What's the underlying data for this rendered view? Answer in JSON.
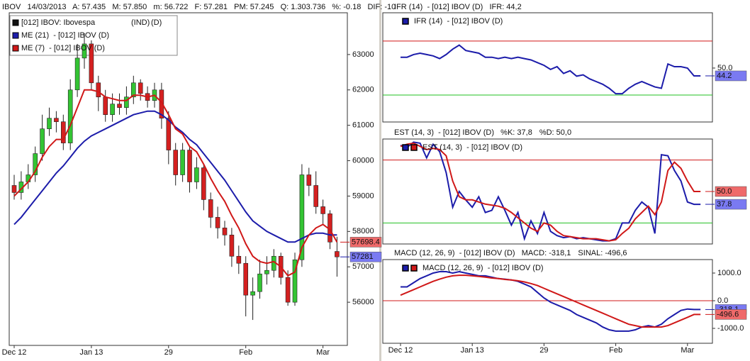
{
  "chart_data": [
    {
      "type": "candlestick",
      "title": "IBOV   14/03/2013   A: 57.435   M: 57.850   m: 56.722   F: 57.281   PM: 57.245   Q: 1.303.736   %: -0.18   DIF: -10",
      "symbol": "[012] IBOV: Ibovespa",
      "symbol_tags": [
        "(IND)",
        "(D)"
      ],
      "categories": [
        "Dec 12",
        null,
        null,
        null,
        null,
        null,
        null,
        null,
        null,
        null,
        null,
        "Jan 13",
        null,
        null,
        null,
        null,
        null,
        null,
        null,
        null,
        null,
        null,
        "29",
        null,
        null,
        null,
        null,
        null,
        null,
        null,
        null,
        null,
        null,
        "Feb",
        null,
        null,
        null,
        null,
        null,
        null,
        null,
        null,
        null,
        null,
        "Mar",
        null,
        null
      ],
      "open": [
        59300,
        59100,
        59400,
        59600,
        60200,
        60900,
        61200,
        61100,
        60500,
        62000,
        62900,
        63300,
        62200,
        61800,
        61300,
        61600,
        61500,
        61800,
        62200,
        61900,
        61700,
        62000,
        61200,
        60300,
        59600,
        60300,
        59400,
        59800,
        58900,
        58400,
        58100,
        57900,
        57300,
        57100,
        56200,
        56300,
        56800,
        56900,
        57300,
        56700,
        56000,
        57200,
        59600,
        59300,
        58700,
        58500,
        57435
      ],
      "high": [
        59600,
        59700,
        59900,
        60400,
        61300,
        61500,
        61400,
        61300,
        62300,
        63300,
        63600,
        63400,
        62400,
        62000,
        61900,
        61900,
        62100,
        62400,
        62300,
        62100,
        62200,
        62200,
        61400,
        60500,
        60500,
        60400,
        60100,
        59900,
        59100,
        58700,
        58300,
        58100,
        57600,
        57300,
        56700,
        57200,
        57300,
        57500,
        57400,
        56900,
        57400,
        59900,
        59800,
        59700,
        58900,
        58600,
        57850
      ],
      "low": [
        58900,
        58900,
        59200,
        59400,
        60000,
        60700,
        60800,
        60300,
        60300,
        61800,
        62600,
        62000,
        61400,
        61100,
        61100,
        61300,
        61300,
        61600,
        61700,
        61500,
        61500,
        60900,
        59900,
        59300,
        59400,
        59100,
        59200,
        58600,
        58100,
        57800,
        57600,
        57000,
        56800,
        55600,
        55500,
        56100,
        56500,
        56700,
        56500,
        55900,
        55900,
        57000,
        59000,
        58500,
        58200,
        57500,
        56722
      ],
      "close": [
        59100,
        59400,
        59600,
        60200,
        60900,
        61200,
        61100,
        60500,
        62000,
        62900,
        63300,
        62200,
        61800,
        61300,
        61600,
        61500,
        61800,
        62200,
        61900,
        61700,
        62000,
        61200,
        60300,
        59600,
        60300,
        59400,
        59800,
        58900,
        58400,
        58100,
        57900,
        57300,
        57100,
        56200,
        56300,
        56800,
        56900,
        57300,
        56700,
        56000,
        57200,
        59600,
        59300,
        58700,
        58500,
        57700,
        57281
      ],
      "series": [
        {
          "name": "ME (21)  - [012] IBOV (D)",
          "color": "#1c1caa",
          "values": [
            58200,
            58400,
            58650,
            58900,
            59150,
            59400,
            59650,
            59850,
            60100,
            60350,
            60550,
            60700,
            60800,
            60900,
            61000,
            61100,
            61200,
            61300,
            61350,
            61400,
            61400,
            61300,
            61150,
            60950,
            60800,
            60600,
            60450,
            60200,
            59950,
            59700,
            59450,
            59150,
            58850,
            58550,
            58300,
            58150,
            58000,
            57900,
            57800,
            57700,
            57700,
            57800,
            57900,
            57950,
            57950,
            57900,
            57900
          ]
        },
        {
          "name": "ME (7)  - [012] IBOV (D)",
          "color": "#d01818",
          "values": [
            59000,
            59200,
            59400,
            59700,
            60100,
            60400,
            60600,
            60600,
            61000,
            61500,
            62000,
            62000,
            61950,
            61800,
            61750,
            61700,
            61700,
            61850,
            61850,
            61800,
            61850,
            61650,
            61300,
            60900,
            60750,
            60400,
            60250,
            59900,
            59500,
            59150,
            58850,
            58450,
            58100,
            57650,
            57300,
            57150,
            57100,
            57150,
            57000,
            56750,
            56850,
            57550,
            57900,
            58100,
            58200,
            58050,
            57698.4
          ]
        }
      ],
      "up_color": "#33c433",
      "down_color": "#d42020",
      "ylim": [
        54780,
        64180
      ],
      "yticks": [
        56000,
        57000,
        58000,
        59000,
        60000,
        61000,
        62000,
        63000
      ],
      "markers": [
        {
          "value": 57698.4,
          "color": "#ef6a6a"
        },
        {
          "value": 57281,
          "color": "#7a7af2"
        }
      ]
    },
    {
      "type": "line",
      "title": "IFR (14)  - [012] IBOV (D)   IFR: 44,2",
      "legend": "IFR (14)  - [012] IBOV (D)",
      "series": [
        {
          "color": "#1c1caa",
          "values": [
            58,
            58,
            60,
            61,
            60,
            59,
            57,
            60,
            64,
            67,
            63,
            62,
            61,
            58,
            58,
            57,
            58,
            57,
            58,
            57,
            56,
            54,
            52,
            49,
            51,
            46,
            48,
            44,
            45,
            42,
            40,
            38,
            35,
            31,
            31,
            35,
            38,
            40,
            38,
            36,
            35,
            53,
            51,
            51,
            50,
            44.2,
            44.2
          ]
        }
      ],
      "levels": [
        {
          "value": 70,
          "color": "#d01818"
        },
        {
          "value": 30,
          "color": "#22c022"
        }
      ],
      "ylim": [
        10,
        91
      ],
      "yticks": [
        {
          "value": 50,
          "label": "50.0"
        }
      ],
      "markers": [
        {
          "value": 44.2,
          "color": "#7a7af2"
        }
      ]
    },
    {
      "type": "line",
      "title": "EST (14, 3)  - [012] IBOV (D)   %K: 37,8",
      "title_extra": "%D: 50,0",
      "legend": "EST (14, 3)  - [012] IBOV (D)",
      "series": [
        {
          "color": "#1c1caa",
          "values": [
            94,
            92,
            97,
            96,
            82,
            95,
            88,
            68,
            35,
            50,
            42,
            35,
            45,
            30,
            32,
            45,
            32,
            18,
            30,
            5,
            22,
            10,
            30,
            12,
            8,
            6,
            7,
            5,
            6,
            5,
            4,
            3,
            3,
            5,
            20,
            20,
            32,
            40,
            35,
            10,
            85,
            84,
            70,
            60,
            40,
            37.8,
            37.8
          ]
        },
        {
          "color": "#d01818",
          "values": [
            93,
            95,
            96,
            93,
            90,
            91,
            90,
            84,
            60,
            45,
            42,
            42,
            40,
            38,
            37,
            36,
            34,
            30,
            25,
            20,
            15,
            12,
            20,
            18,
            12,
            8,
            7,
            6,
            5,
            5,
            5,
            4,
            3,
            4,
            10,
            15,
            24,
            30,
            36,
            28,
            40,
            70,
            78,
            72,
            60,
            50,
            50
          ]
        }
      ],
      "levels": [
        {
          "value": 80,
          "color": "#d01818"
        },
        {
          "value": 20,
          "color": "#22c022"
        }
      ],
      "ylim": [
        0,
        100
      ],
      "yticks": [],
      "markers": [
        {
          "value": 50,
          "label": "50.0",
          "color": "#ef6a6a"
        },
        {
          "value": 37.8,
          "color": "#7a7af2"
        }
      ]
    },
    {
      "type": "line",
      "title": "MACD (12, 26, 9)  - [012] IBOV (D)   MACD: -318,1",
      "title_extra": "SINAL: -496,6",
      "legend": "MACD (12, 26, 9)  - [012] IBOV (D)",
      "categories": [
        "Dec 12",
        null,
        null,
        null,
        null,
        null,
        null,
        null,
        null,
        null,
        null,
        "Jan 13",
        null,
        null,
        null,
        null,
        null,
        null,
        null,
        null,
        null,
        null,
        "29",
        null,
        null,
        null,
        null,
        null,
        null,
        null,
        null,
        null,
        null,
        "Feb",
        null,
        null,
        null,
        null,
        null,
        null,
        null,
        null,
        null,
        null,
        "Mar",
        null,
        null
      ],
      "series": [
        {
          "color": "#1c1caa",
          "values": [
            500,
            500,
            650,
            800,
            900,
            1000,
            1050,
            1050,
            1000,
            1050,
            1000,
            950,
            900,
            900,
            850,
            800,
            780,
            750,
            700,
            600,
            500,
            300,
            100,
            -50,
            -150,
            -250,
            -350,
            -500,
            -600,
            -700,
            -800,
            -950,
            -1050,
            -1100,
            -1100,
            -1100,
            -1050,
            -950,
            -900,
            -950,
            -850,
            -650,
            -500,
            -350,
            -300,
            -318.1,
            -318.1
          ]
        },
        {
          "color": "#d01818",
          "values": [
            200,
            300,
            400,
            500,
            600,
            700,
            780,
            850,
            900,
            920,
            920,
            900,
            880,
            850,
            820,
            800,
            770,
            750,
            720,
            680,
            620,
            550,
            450,
            350,
            250,
            150,
            50,
            -50,
            -150,
            -250,
            -350,
            -450,
            -550,
            -650,
            -750,
            -850,
            -900,
            -950,
            -950,
            -950,
            -950,
            -900,
            -800,
            -700,
            -600,
            -496.6,
            -496.6
          ]
        }
      ],
      "levels": [
        {
          "value": 0,
          "color": "#d01818"
        }
      ],
      "ylim": [
        -1538,
        1487
      ],
      "yticks": [
        {
          "value": 1000,
          "label": "1000.0"
        },
        {
          "value": 0,
          "label": "0.0"
        },
        {
          "value": -1000,
          "label": "-1000.0"
        }
      ],
      "markers": [
        {
          "value": -318.1,
          "color": "#7a7af2"
        },
        {
          "value": -496.6,
          "color": "#ef6a6a"
        }
      ]
    }
  ]
}
